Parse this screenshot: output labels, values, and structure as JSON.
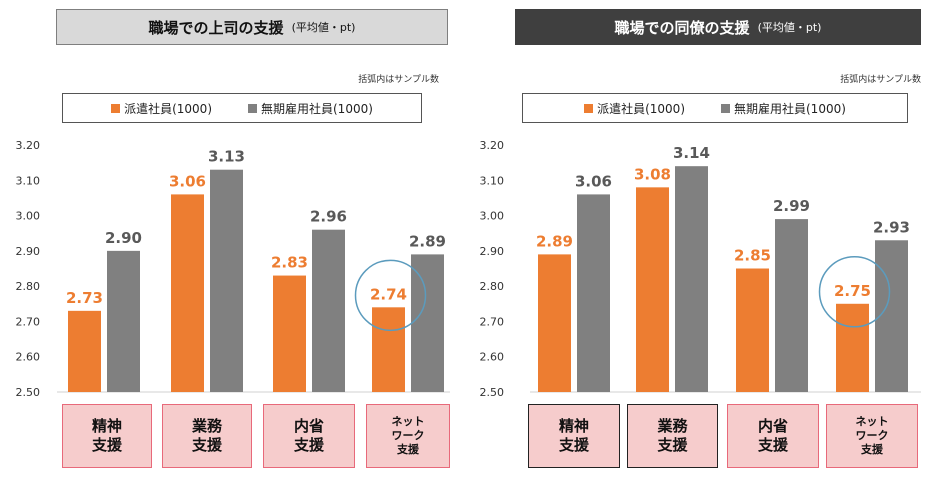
{
  "chart_data": [
    {
      "type": "bar",
      "title": "職場での上司の支援",
      "subtitle": "(平均値・pt)",
      "note": "括弧内はサンプル数",
      "categories": [
        "精神\n支援",
        "業務\n支援",
        "内省\n支援",
        "ネット\nワーク\n支援"
      ],
      "series": [
        {
          "name": "派遣社員(1000)",
          "color": "#ed7d31",
          "values": [
            2.73,
            3.06,
            2.83,
            2.74
          ]
        },
        {
          "name": "無期雇用社員(1000)",
          "color": "#808080",
          "values": [
            2.9,
            3.13,
            2.96,
            2.89
          ]
        }
      ],
      "ylim": [
        2.5,
        3.2
      ],
      "yticks": [
        "2.50",
        "2.60",
        "2.70",
        "2.80",
        "2.90",
        "3.00",
        "3.10",
        "3.20"
      ],
      "value_labels": [
        [
          "2.73",
          "3.06",
          "2.83",
          "2.74"
        ],
        [
          "2.90",
          "3.13",
          "2.96",
          "2.89"
        ]
      ],
      "highlighted_category_index": 3,
      "grid": false,
      "legend_position": "top"
    },
    {
      "type": "bar",
      "title": "職場での同僚の支援",
      "subtitle": "(平均値・pt)",
      "note": "括弧内はサンプル数",
      "categories": [
        "精神\n支援",
        "業務\n支援",
        "内省\n支援",
        "ネット\nワーク\n支援"
      ],
      "series": [
        {
          "name": "派遣社員(1000)",
          "color": "#ed7d31",
          "values": [
            2.89,
            3.08,
            2.85,
            2.75
          ]
        },
        {
          "name": "無期雇用社員(1000)",
          "color": "#808080",
          "values": [
            3.06,
            3.14,
            2.99,
            2.93
          ]
        }
      ],
      "ylim": [
        2.5,
        3.2
      ],
      "yticks": [
        "2.50",
        "2.60",
        "2.70",
        "2.80",
        "2.90",
        "3.00",
        "3.10",
        "3.20"
      ],
      "value_labels": [
        [
          "2.89",
          "3.08",
          "2.85",
          "2.75"
        ],
        [
          "3.06",
          "3.14",
          "2.99",
          "2.93"
        ]
      ],
      "highlighted_category_index": 3,
      "grid": false,
      "legend_position": "top"
    }
  ]
}
